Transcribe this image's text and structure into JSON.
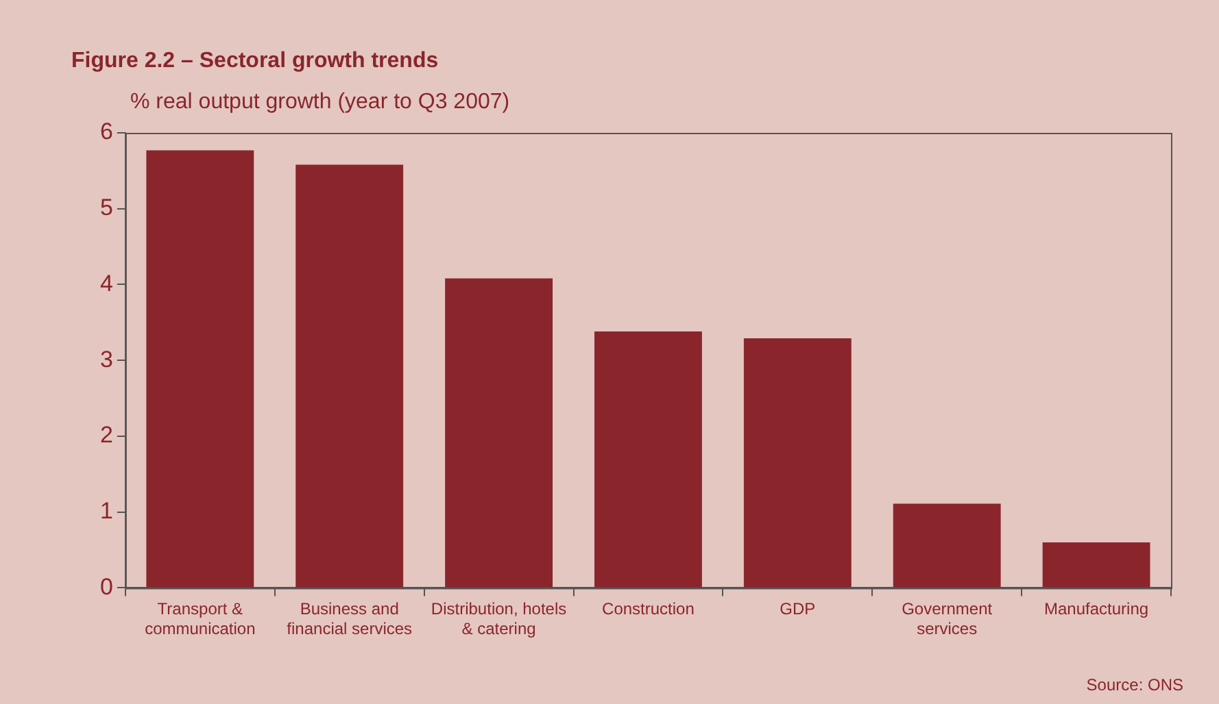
{
  "chart_data": {
    "type": "bar",
    "title": "Figure 2.2 – Sectoral growth trends",
    "ylabel": "% real output growth (year to Q3 2007)",
    "categories": [
      "Transport & communication",
      "Business and financial services",
      "Distribution, hotels & catering",
      "Construction",
      "GDP",
      "Government services",
      "Manufacturing"
    ],
    "values": [
      5.77,
      5.58,
      4.08,
      3.38,
      3.29,
      1.11,
      0.6
    ],
    "color": "#8b252c",
    "ylim": [
      0,
      6
    ],
    "yticks": [
      0,
      1,
      2,
      3,
      4,
      5,
      6
    ],
    "grid": false,
    "legend": false,
    "annotations": [
      "Source: ONS"
    ]
  }
}
